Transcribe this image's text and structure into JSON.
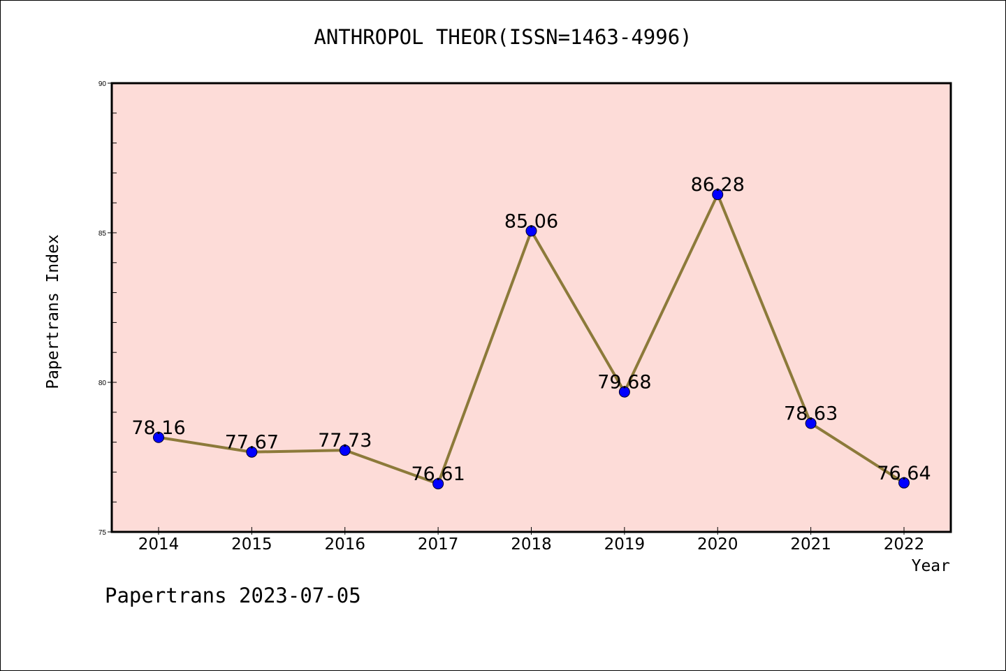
{
  "chart_data": {
    "type": "line",
    "title": "ANTHROPOL THEOR(ISSN=1463-4996)",
    "xlabel": "Year",
    "ylabel": "Papertrans Index",
    "categories": [
      "2014",
      "2015",
      "2016",
      "2017",
      "2018",
      "2019",
      "2020",
      "2021",
      "2022"
    ],
    "series": [
      {
        "values": [
          78.16,
          77.67,
          77.73,
          76.61,
          85.06,
          79.68,
          86.28,
          78.63,
          76.64
        ],
        "labels": [
          "78.16",
          "77.67",
          "77.73",
          "76.61",
          "85.06",
          "79.68",
          "86.28",
          "78.63",
          "76.64"
        ]
      }
    ],
    "ylim": [
      75,
      90
    ],
    "yticks": [
      "75",
      "80",
      "85",
      "90"
    ],
    "grid": false,
    "legend": "none",
    "colors": {
      "line": "#8c7a3a",
      "marker": "#0000ff",
      "plot_background": "#fddcd8"
    }
  },
  "footer": "Papertrans 2023-07-05"
}
